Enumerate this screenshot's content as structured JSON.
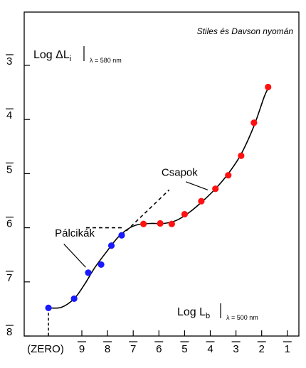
{
  "chart_data": {
    "type": "scatter",
    "title": "",
    "credit": "Stiles és Davson nyomán",
    "y_axis": {
      "label_main": "Log ΔL",
      "label_sub": "i",
      "label_cond": "λ = 580 nm",
      "ticks": [
        {
          "value": 3,
          "label": "3"
        },
        {
          "value": 4,
          "label": "4"
        },
        {
          "value": 5,
          "label": "5"
        },
        {
          "value": 6,
          "label": "6"
        },
        {
          "value": 7,
          "label": "7"
        },
        {
          "value": 8,
          "label": "8"
        }
      ],
      "range": [
        2.7,
        8.0
      ],
      "bar_notation": true
    },
    "x_axis": {
      "label_main": "Log L",
      "label_sub": "b",
      "label_cond": "λ = 500 nm",
      "ticks": [
        {
          "value": 9,
          "label": "9"
        },
        {
          "value": 8,
          "label": "8"
        },
        {
          "value": 7,
          "label": "7"
        },
        {
          "value": 6,
          "label": "6"
        },
        {
          "value": 5,
          "label": "5"
        },
        {
          "value": 4,
          "label": "4"
        },
        {
          "value": 3,
          "label": "3"
        },
        {
          "value": 2,
          "label": "2"
        },
        {
          "value": 1,
          "label": "1"
        }
      ],
      "zero_label": "(ZERO)",
      "range": [
        10.6,
        0.9
      ],
      "bar_notation": true
    },
    "series": [
      {
        "name": "Pálcikák",
        "color": "#1a1aff",
        "points": [
          {
            "x": 10.3,
            "y": 7.48
          },
          {
            "x": 9.3,
            "y": 7.31
          },
          {
            "x": 8.75,
            "y": 6.83
          },
          {
            "x": 8.25,
            "y": 6.68
          },
          {
            "x": 7.85,
            "y": 6.33
          },
          {
            "x": 7.45,
            "y": 6.14
          }
        ]
      },
      {
        "name": "Csapok",
        "color": "#ff1111",
        "points": [
          {
            "x": 6.6,
            "y": 5.93
          },
          {
            "x": 5.95,
            "y": 5.92
          },
          {
            "x": 5.5,
            "y": 5.93
          },
          {
            "x": 5.0,
            "y": 5.75
          },
          {
            "x": 4.35,
            "y": 5.51
          },
          {
            "x": 3.8,
            "y": 5.28
          },
          {
            "x": 3.3,
            "y": 5.03
          },
          {
            "x": 2.8,
            "y": 4.67
          },
          {
            "x": 2.3,
            "y": 4.06
          },
          {
            "x": 1.75,
            "y": 3.4
          }
        ]
      }
    ],
    "fitted_curve": [
      [
        10.3,
        7.48
      ],
      [
        9.8,
        7.47
      ],
      [
        9.3,
        7.31
      ],
      [
        8.9,
        7.05
      ],
      [
        8.5,
        6.74
      ],
      [
        8.0,
        6.42
      ],
      [
        7.6,
        6.18
      ],
      [
        7.2,
        6.02
      ],
      [
        6.8,
        5.94
      ],
      [
        6.3,
        5.92
      ],
      [
        5.8,
        5.92
      ],
      [
        5.3,
        5.86
      ],
      [
        4.8,
        5.71
      ],
      [
        4.3,
        5.51
      ],
      [
        3.8,
        5.28
      ],
      [
        3.3,
        5.0
      ],
      [
        2.8,
        4.64
      ],
      [
        2.3,
        4.12
      ],
      [
        1.9,
        3.58
      ],
      [
        1.7,
        3.38
      ]
    ],
    "dashed_extensions": [
      [
        [
          7.45,
          6.14
        ],
        [
          5.6,
          5.3
        ]
      ],
      [
        [
          7.45,
          6.0
        ],
        [
          8.85,
          6.0
        ]
      ]
    ],
    "zero_dashed_drop": [
      [
        10.3,
        7.48
      ],
      [
        10.3,
        8.0
      ]
    ],
    "annotations": [
      {
        "text": "Csapok",
        "x": 5.9,
        "y": 5.04,
        "pointer": [
          [
            4.95,
            5.15
          ],
          [
            4.1,
            5.3
          ]
        ]
      },
      {
        "text": "Pálcikák",
        "x": 10.05,
        "y": 6.16,
        "pointer": [
          [
            9.7,
            6.3
          ],
          [
            8.85,
            6.73
          ]
        ]
      }
    ],
    "grid": false,
    "legend": "none"
  }
}
